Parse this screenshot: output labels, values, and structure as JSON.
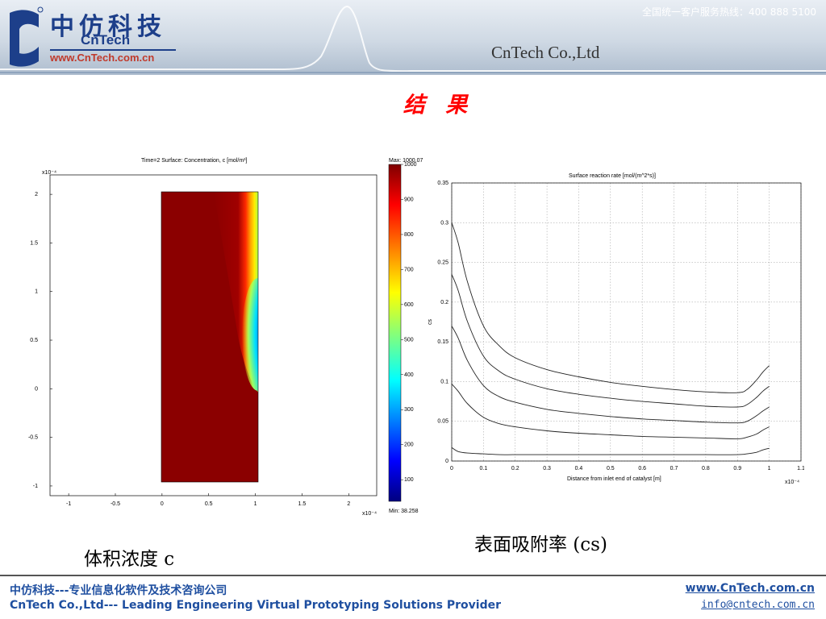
{
  "header": {
    "logo_cn": "中仿科技",
    "logo_en": "CnTech",
    "logo_url": "www.CnTech.com.cn",
    "hotline": "全国统一客户服务热线：400 888 5100",
    "company_en": "CnTech Co.,Ltd"
  },
  "slide": {
    "title": "结 果",
    "caption_left": "体积浓度 c",
    "caption_right": "表面吸附率 (cs)"
  },
  "colors": {
    "title": "#ff0000",
    "brand_blue": "#1d3f8a",
    "footer_blue": "#1f4fa0"
  },
  "chart_data": [
    {
      "type": "heatmap",
      "title": "Time=2    Surface: Concentration, c [mol/m³]",
      "x_exponent": "x10⁻⁴",
      "y_exponent": "x10⁻⁴",
      "xlim": [
        -1.2,
        2.3
      ],
      "ylim": [
        -1.1,
        2.2
      ],
      "x_ticks": [
        "-1",
        "-0.5",
        "0",
        "0.5",
        "1",
        "1.5",
        "2"
      ],
      "y_ticks": [
        "2",
        "1.5",
        "1",
        "0.5",
        "0",
        "-0.5",
        "-1"
      ],
      "domain_x": [
        0,
        1
      ],
      "domain_y": [
        -1,
        2
      ],
      "colorbar": {
        "max_label": "Max: 1000.07",
        "min_label": "Min: 38.258",
        "ticks": [
          "1000",
          "900",
          "800",
          "700",
          "600",
          "500",
          "400",
          "300",
          "200",
          "100"
        ]
      }
    },
    {
      "type": "line",
      "title": "Surface reaction rate [mol/(m^2*s)]",
      "xlabel": "Distance from inlet end of catalyst [m]",
      "ylabel": "cs",
      "x_exponent": "x10⁻⁴",
      "xlim": [
        0,
        1.1
      ],
      "ylim": [
        0,
        0.35
      ],
      "x_ticks": [
        "0",
        "0.1",
        "0.2",
        "0.3",
        "0.4",
        "0.5",
        "0.6",
        "0.7",
        "0.8",
        "0.9",
        "1",
        "1.1"
      ],
      "y_ticks": [
        "0.35",
        "0.3",
        "0.25",
        "0.2",
        "0.15",
        "0.1",
        "0.05",
        "0"
      ],
      "grid": true,
      "x": [
        0,
        0.02,
        0.05,
        0.1,
        0.15,
        0.2,
        0.3,
        0.4,
        0.5,
        0.6,
        0.7,
        0.8,
        0.9,
        0.93,
        0.96,
        0.98,
        1.0
      ],
      "series": [
        {
          "values": [
            0.3,
            0.275,
            0.225,
            0.17,
            0.145,
            0.13,
            0.115,
            0.106,
            0.099,
            0.094,
            0.09,
            0.087,
            0.086,
            0.09,
            0.102,
            0.112,
            0.12
          ]
        },
        {
          "values": [
            0.235,
            0.215,
            0.175,
            0.132,
            0.113,
            0.103,
            0.091,
            0.084,
            0.079,
            0.075,
            0.072,
            0.069,
            0.068,
            0.071,
            0.08,
            0.088,
            0.094
          ]
        },
        {
          "values": [
            0.17,
            0.155,
            0.126,
            0.095,
            0.081,
            0.074,
            0.065,
            0.06,
            0.056,
            0.053,
            0.051,
            0.049,
            0.048,
            0.05,
            0.057,
            0.063,
            0.068
          ]
        },
        {
          "values": [
            0.097,
            0.088,
            0.072,
            0.055,
            0.047,
            0.043,
            0.038,
            0.035,
            0.033,
            0.031,
            0.03,
            0.029,
            0.028,
            0.03,
            0.034,
            0.039,
            0.043
          ]
        },
        {
          "values": [
            0.017,
            0.012,
            0.01,
            0.009,
            0.008,
            0.008,
            0.008,
            0.008,
            0.008,
            0.008,
            0.008,
            0.008,
            0.008,
            0.009,
            0.011,
            0.014,
            0.016
          ]
        }
      ]
    }
  ],
  "footer": {
    "cn": "中仿科技---专业信息化软件及技术咨询公司",
    "en": "CnTech Co.,Ltd--- Leading Engineering Virtual Prototyping Solutions Provider",
    "url": "www.CnTech.com.cn",
    "email": "info@cntech.com.cn"
  }
}
